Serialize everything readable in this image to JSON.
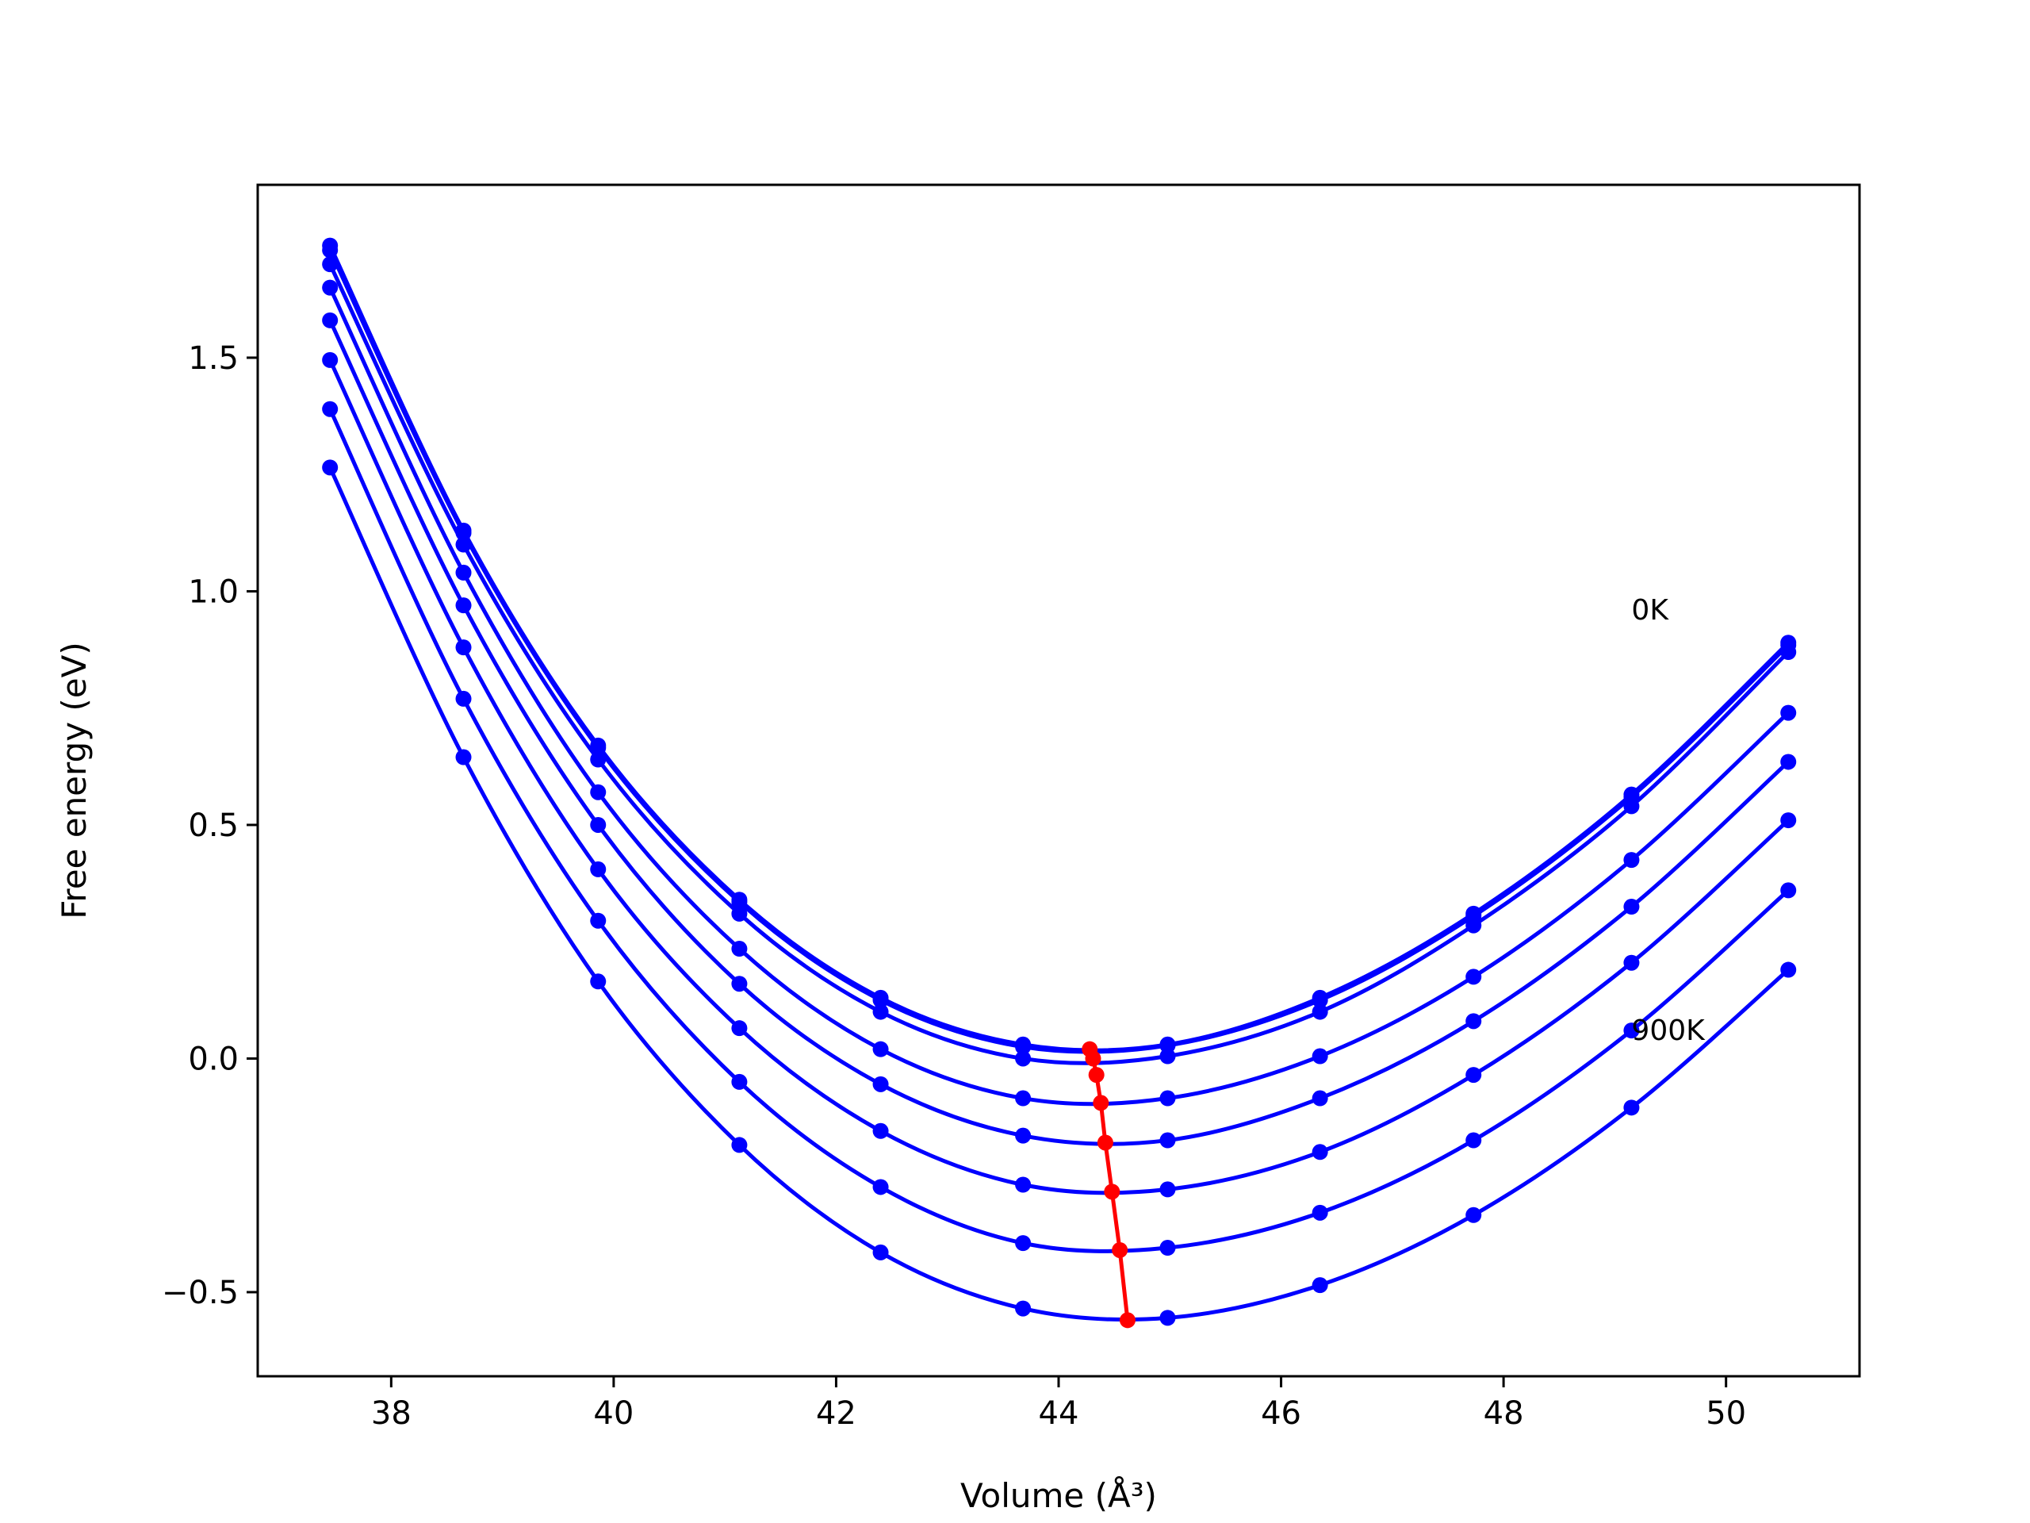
{
  "chart_data": {
    "type": "line",
    "xlabel": "Volume (Å³)",
    "ylabel": "Free energy (eV)",
    "xlim": [
      36.8,
      51.2
    ],
    "ylim": [
      -0.68,
      1.87
    ],
    "xticks": [
      38,
      40,
      42,
      44,
      46,
      48,
      50
    ],
    "xtick_labels": [
      "38",
      "40",
      "42",
      "44",
      "46",
      "48",
      "50"
    ],
    "yticks": [
      -0.5,
      0.0,
      0.5,
      1.0,
      1.5
    ],
    "ytick_labels": [
      "−0.5",
      "0.0",
      "0.5",
      "1.0",
      "1.5"
    ],
    "grid": false,
    "x": [
      37.45,
      38.65,
      39.86,
      41.13,
      42.4,
      43.68,
      44.98,
      46.35,
      47.73,
      49.15,
      50.56
    ],
    "series": [
      {
        "color": "#0000ff",
        "values": [
          1.74,
          1.13,
          0.67,
          0.34,
          0.13,
          0.03,
          0.03,
          0.13,
          0.31,
          0.565,
          0.89
        ]
      },
      {
        "color": "#0000ff",
        "values": [
          1.73,
          1.125,
          0.665,
          0.335,
          0.125,
          0.025,
          0.028,
          0.125,
          0.305,
          0.56,
          0.885
        ]
      },
      {
        "color": "#0000ff",
        "values": [
          1.7,
          1.1,
          0.64,
          0.31,
          0.1,
          0.0,
          0.005,
          0.1,
          0.285,
          0.54,
          0.87
        ]
      },
      {
        "color": "#0000ff",
        "values": [
          1.65,
          1.04,
          0.57,
          0.235,
          0.02,
          -0.085,
          -0.085,
          0.005,
          0.175,
          0.425,
          0.74
        ]
      },
      {
        "color": "#0000ff",
        "values": [
          1.58,
          0.97,
          0.5,
          0.16,
          -0.055,
          -0.165,
          -0.175,
          -0.085,
          0.08,
          0.325,
          0.635
        ]
      },
      {
        "color": "#0000ff",
        "values": [
          1.495,
          0.88,
          0.405,
          0.065,
          -0.155,
          -0.27,
          -0.28,
          -0.2,
          -0.035,
          0.205,
          0.51
        ]
      },
      {
        "color": "#0000ff",
        "values": [
          1.39,
          0.77,
          0.295,
          -0.05,
          -0.275,
          -0.395,
          -0.405,
          -0.33,
          -0.175,
          0.06,
          0.36
        ]
      },
      {
        "color": "#0000ff",
        "values": [
          1.265,
          0.645,
          0.165,
          -0.185,
          -0.415,
          -0.535,
          -0.555,
          -0.485,
          -0.335,
          -0.105,
          0.19
        ]
      }
    ],
    "minima": {
      "color": "#ff0000",
      "x": [
        44.28,
        44.31,
        44.34,
        44.38,
        44.42,
        44.48,
        44.55,
        44.62
      ],
      "y": [
        0.02,
        0.0,
        -0.035,
        -0.095,
        -0.18,
        -0.285,
        -0.41,
        -0.56
      ]
    },
    "annotations": [
      {
        "text": "0K",
        "x": 49.15,
        "y": 0.94
      },
      {
        "text": "900K",
        "x": 49.15,
        "y": 0.04
      }
    ]
  }
}
